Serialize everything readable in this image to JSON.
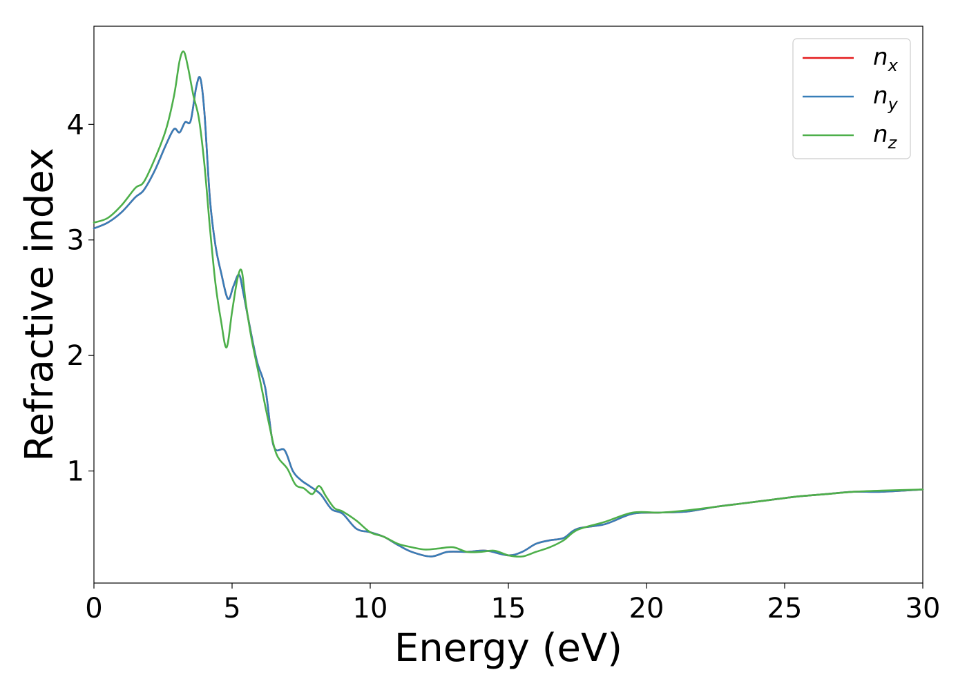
{
  "chart_data": {
    "type": "line",
    "xlabel": "Energy (eV)",
    "ylabel": "Refractive index",
    "xlim": [
      0,
      30
    ],
    "ylim": [
      0.03,
      4.85
    ],
    "xticks": [
      0,
      5,
      10,
      15,
      20,
      25,
      30
    ],
    "yticks": [
      1,
      2,
      3,
      4
    ],
    "grid": false,
    "legend_position": "top-right",
    "series": [
      {
        "name": "n_x",
        "legend_base": "n",
        "legend_sub": "x",
        "color": "#e41a1c",
        "x": [
          0,
          0.5,
          1,
          1.5,
          1.8,
          2.2,
          2.6,
          2.9,
          3.1,
          3.3,
          3.5,
          3.7,
          3.85,
          4.0,
          4.2,
          4.4,
          4.6,
          4.85,
          5.05,
          5.25,
          5.4,
          5.6,
          5.9,
          6.2,
          6.5,
          6.9,
          7.2,
          7.5,
          7.8,
          8.2,
          8.6,
          9.0,
          9.5,
          10.0,
          10.5,
          11.0,
          11.5,
          12.2,
          12.8,
          13.5,
          14.2,
          15.0,
          15.5,
          16.0,
          16.5,
          17.0,
          17.5,
          18.5,
          19.5,
          20.5,
          21.5,
          22.5,
          23.5,
          24.5,
          25.5,
          26.5,
          27.5,
          28.5,
          30
        ],
        "y": [
          3.1,
          3.15,
          3.24,
          3.37,
          3.43,
          3.6,
          3.82,
          3.96,
          3.93,
          4.02,
          4.03,
          4.32,
          4.4,
          4.1,
          3.35,
          2.95,
          2.72,
          2.49,
          2.6,
          2.7,
          2.55,
          2.3,
          1.95,
          1.72,
          1.22,
          1.18,
          1.0,
          0.92,
          0.87,
          0.8,
          0.67,
          0.63,
          0.5,
          0.47,
          0.43,
          0.36,
          0.3,
          0.26,
          0.3,
          0.3,
          0.31,
          0.27,
          0.3,
          0.37,
          0.4,
          0.42,
          0.5,
          0.54,
          0.63,
          0.64,
          0.65,
          0.69,
          0.72,
          0.75,
          0.78,
          0.8,
          0.82,
          0.82,
          0.84
        ]
      },
      {
        "name": "n_y",
        "legend_base": "n",
        "legend_sub": "y",
        "color": "#377eb8",
        "x": [
          0,
          0.5,
          1,
          1.5,
          1.8,
          2.2,
          2.6,
          2.9,
          3.1,
          3.3,
          3.5,
          3.7,
          3.85,
          4.0,
          4.2,
          4.4,
          4.6,
          4.85,
          5.05,
          5.25,
          5.4,
          5.6,
          5.9,
          6.2,
          6.5,
          6.9,
          7.2,
          7.5,
          7.8,
          8.2,
          8.6,
          9.0,
          9.5,
          10.0,
          10.5,
          11.0,
          11.5,
          12.2,
          12.8,
          13.5,
          14.2,
          15.0,
          15.5,
          16.0,
          16.5,
          17.0,
          17.5,
          18.5,
          19.5,
          20.5,
          21.5,
          22.5,
          23.5,
          24.5,
          25.5,
          26.5,
          27.5,
          28.5,
          30
        ],
        "y": [
          3.1,
          3.15,
          3.24,
          3.37,
          3.43,
          3.6,
          3.82,
          3.96,
          3.93,
          4.02,
          4.03,
          4.32,
          4.4,
          4.1,
          3.35,
          2.95,
          2.72,
          2.49,
          2.6,
          2.7,
          2.55,
          2.3,
          1.95,
          1.72,
          1.22,
          1.18,
          1.0,
          0.92,
          0.87,
          0.8,
          0.67,
          0.63,
          0.5,
          0.47,
          0.43,
          0.36,
          0.3,
          0.26,
          0.3,
          0.3,
          0.31,
          0.27,
          0.3,
          0.37,
          0.4,
          0.42,
          0.5,
          0.54,
          0.63,
          0.64,
          0.65,
          0.69,
          0.72,
          0.75,
          0.78,
          0.8,
          0.82,
          0.82,
          0.84
        ]
      },
      {
        "name": "n_z",
        "legend_base": "n",
        "legend_sub": "z",
        "color": "#4daf4a",
        "x": [
          0,
          0.5,
          1,
          1.5,
          1.8,
          2.2,
          2.6,
          2.9,
          3.1,
          3.25,
          3.4,
          3.6,
          3.8,
          4.0,
          4.2,
          4.4,
          4.6,
          4.8,
          5.0,
          5.2,
          5.35,
          5.5,
          5.7,
          6.0,
          6.3,
          6.6,
          7.0,
          7.3,
          7.6,
          7.9,
          8.15,
          8.4,
          8.7,
          9.0,
          9.5,
          10.0,
          10.5,
          11.0,
          11.5,
          12.0,
          12.5,
          13.0,
          13.5,
          14.0,
          14.5,
          15.0,
          15.5,
          16.0,
          16.5,
          17.0,
          17.5,
          18.5,
          19.5,
          20.5,
          21.5,
          22.5,
          23.5,
          24.5,
          25.5,
          26.5,
          27.5,
          28.5,
          30
        ],
        "y": [
          3.15,
          3.19,
          3.3,
          3.45,
          3.5,
          3.7,
          3.95,
          4.25,
          4.55,
          4.63,
          4.5,
          4.25,
          4.05,
          3.65,
          3.1,
          2.62,
          2.3,
          2.07,
          2.38,
          2.67,
          2.73,
          2.45,
          2.15,
          1.8,
          1.45,
          1.15,
          1.02,
          0.88,
          0.85,
          0.8,
          0.87,
          0.78,
          0.68,
          0.65,
          0.57,
          0.47,
          0.43,
          0.37,
          0.34,
          0.32,
          0.33,
          0.34,
          0.3,
          0.3,
          0.31,
          0.27,
          0.26,
          0.3,
          0.34,
          0.4,
          0.49,
          0.56,
          0.64,
          0.64,
          0.66,
          0.69,
          0.72,
          0.75,
          0.78,
          0.8,
          0.82,
          0.83,
          0.84
        ]
      }
    ]
  }
}
